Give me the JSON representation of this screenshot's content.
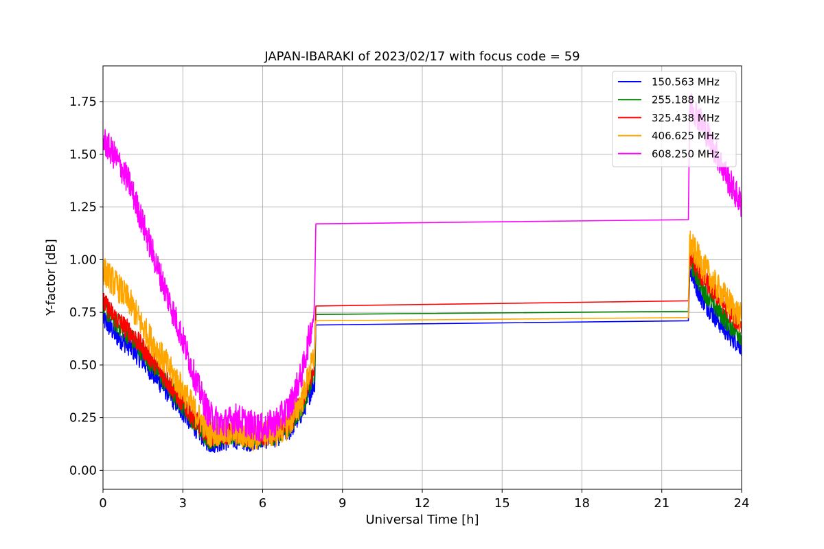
{
  "chart_data": {
    "type": "line",
    "title": "JAPAN-IBARAKI of 2023/02/17 with focus code = 59",
    "xlabel": "Universal Time [h]",
    "ylabel": "Y-factor [dB]",
    "xlim": [
      0,
      24
    ],
    "ylim": [
      -0.09,
      1.92
    ],
    "xticks": [
      0,
      3,
      6,
      9,
      12,
      15,
      18,
      21,
      24
    ],
    "yticks": [
      0.0,
      0.25,
      0.5,
      0.75,
      1.0,
      1.25,
      1.5,
      1.75
    ],
    "ytick_labels": [
      "0.00",
      "0.25",
      "0.50",
      "0.75",
      "1.00",
      "1.25",
      "1.50",
      "1.75"
    ],
    "grid": true,
    "legend_position": "top-right",
    "series": [
      {
        "name": "150.563 MHz",
        "color": "#0000ff",
        "noise": 0.05,
        "segments": [
          [
            [
              0,
              0.72
            ],
            [
              0.5,
              0.64
            ],
            [
              1,
              0.59
            ],
            [
              1.5,
              0.52
            ],
            [
              2,
              0.44
            ],
            [
              2.5,
              0.36
            ],
            [
              3,
              0.28
            ],
            [
              3.5,
              0.2
            ],
            [
              4,
              0.13
            ],
            [
              4.5,
              0.14
            ],
            [
              5,
              0.15
            ],
            [
              5.5,
              0.14
            ],
            [
              6,
              0.15
            ],
            [
              6.5,
              0.16
            ],
            [
              7,
              0.19
            ],
            [
              7.5,
              0.28
            ],
            [
              7.95,
              0.42
            ]
          ],
          [
            [
              8.0,
              0.69
            ],
            [
              22.0,
              0.71
            ]
          ],
          [
            [
              22.05,
              0.95
            ],
            [
              22.5,
              0.82
            ],
            [
              23,
              0.73
            ],
            [
              23.5,
              0.65
            ],
            [
              24,
              0.59
            ]
          ]
        ]
      },
      {
        "name": "255.188 MHz",
        "color": "#008000",
        "noise": 0.05,
        "segments": [
          [
            [
              0,
              0.78
            ],
            [
              0.5,
              0.7
            ],
            [
              1,
              0.64
            ],
            [
              1.5,
              0.56
            ],
            [
              2,
              0.48
            ],
            [
              2.5,
              0.39
            ],
            [
              3,
              0.31
            ],
            [
              3.5,
              0.22
            ],
            [
              4,
              0.15
            ],
            [
              4.5,
              0.16
            ],
            [
              5,
              0.17
            ],
            [
              5.5,
              0.15
            ],
            [
              6,
              0.16
            ],
            [
              6.5,
              0.17
            ],
            [
              7,
              0.21
            ],
            [
              7.5,
              0.31
            ],
            [
              7.95,
              0.46
            ]
          ],
          [
            [
              8.0,
              0.74
            ],
            [
              22.0,
              0.755
            ]
          ],
          [
            [
              22.05,
              1.0
            ],
            [
              22.5,
              0.87
            ],
            [
              23,
              0.78
            ],
            [
              23.5,
              0.7
            ],
            [
              24,
              0.64
            ]
          ]
        ]
      },
      {
        "name": "325.438 MHz",
        "color": "#ff0000",
        "noise": 0.05,
        "segments": [
          [
            [
              0,
              0.8
            ],
            [
              0.5,
              0.72
            ],
            [
              1,
              0.66
            ],
            [
              1.5,
              0.58
            ],
            [
              2,
              0.5
            ],
            [
              2.5,
              0.41
            ],
            [
              3,
              0.32
            ],
            [
              3.5,
              0.23
            ],
            [
              4,
              0.16
            ],
            [
              4.5,
              0.17
            ],
            [
              5,
              0.18
            ],
            [
              5.5,
              0.16
            ],
            [
              6,
              0.17
            ],
            [
              6.5,
              0.18
            ],
            [
              7,
              0.22
            ],
            [
              7.5,
              0.33
            ],
            [
              7.95,
              0.5
            ]
          ],
          [
            [
              8.0,
              0.78
            ],
            [
              22.0,
              0.805
            ]
          ],
          [
            [
              22.05,
              1.02
            ],
            [
              22.5,
              0.92
            ],
            [
              23,
              0.84
            ],
            [
              23.5,
              0.76
            ],
            [
              24,
              0.68
            ]
          ]
        ]
      },
      {
        "name": "406.625 MHz",
        "color": "#ffa500",
        "noise": 0.07,
        "segments": [
          [
            [
              0,
              0.95
            ],
            [
              0.5,
              0.88
            ],
            [
              1,
              0.8
            ],
            [
              1.5,
              0.68
            ],
            [
              2,
              0.58
            ],
            [
              2.5,
              0.48
            ],
            [
              3,
              0.38
            ],
            [
              3.5,
              0.27
            ],
            [
              4,
              0.18
            ],
            [
              4.5,
              0.18
            ],
            [
              5,
              0.18
            ],
            [
              5.5,
              0.16
            ],
            [
              6,
              0.17
            ],
            [
              6.5,
              0.18
            ],
            [
              7,
              0.22
            ],
            [
              7.5,
              0.34
            ],
            [
              7.95,
              0.55
            ]
          ],
          [
            [
              8.0,
              0.71
            ],
            [
              22.0,
              0.725
            ]
          ],
          [
            [
              22.05,
              1.08
            ],
            [
              22.5,
              0.98
            ],
            [
              23,
              0.88
            ],
            [
              23.5,
              0.8
            ],
            [
              24,
              0.72
            ]
          ]
        ]
      },
      {
        "name": "608.250 MHz",
        "color": "#ff00ff",
        "noise": 0.07,
        "segments": [
          [
            [
              0,
              1.57
            ],
            [
              0.5,
              1.48
            ],
            [
              1,
              1.36
            ],
            [
              1.5,
              1.17
            ],
            [
              2,
              0.98
            ],
            [
              2.5,
              0.8
            ],
            [
              3,
              0.62
            ],
            [
              3.5,
              0.42
            ],
            [
              4,
              0.26
            ],
            [
              4.5,
              0.22
            ],
            [
              5,
              0.25
            ],
            [
              5.5,
              0.22
            ],
            [
              6,
              0.2
            ],
            [
              6.5,
              0.23
            ],
            [
              7,
              0.3
            ],
            [
              7.5,
              0.47
            ],
            [
              7.95,
              0.76
            ]
          ],
          [
            [
              8.0,
              1.17
            ],
            [
              22.0,
              1.19
            ]
          ],
          [
            [
              22.05,
              1.75
            ],
            [
              22.5,
              1.65
            ],
            [
              23,
              1.52
            ],
            [
              23.5,
              1.38
            ],
            [
              24,
              1.26
            ]
          ]
        ]
      }
    ]
  }
}
